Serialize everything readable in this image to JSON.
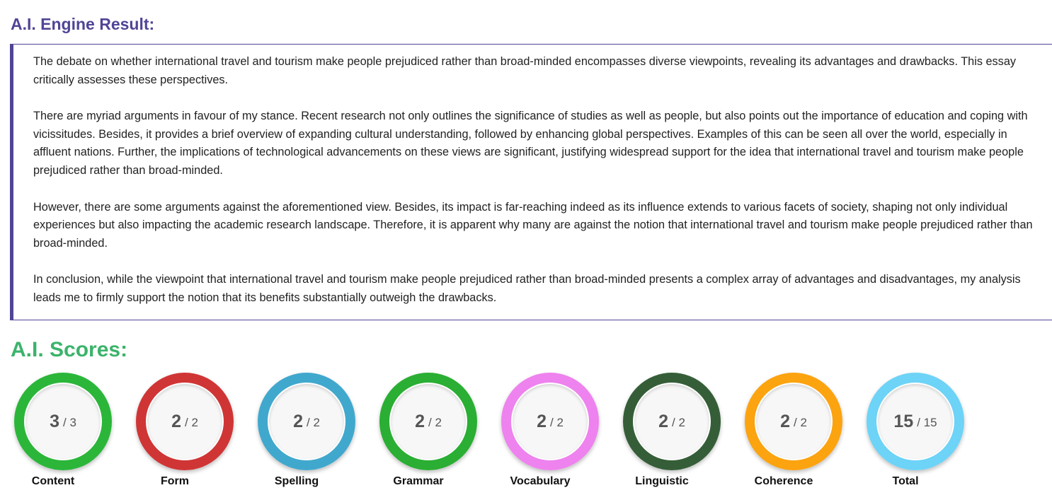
{
  "result": {
    "title": "A.I. Engine Result:",
    "paragraphs": [
      "The debate on whether international travel and tourism make people prejudiced rather than broad-minded encompasses diverse viewpoints, revealing its advantages and drawbacks. This essay critically assesses these perspectives.",
      "There are myriad arguments in favour of my stance. Recent research not only outlines the significance of studies as well as people, but also points out the importance of education and coping with vicissitudes. Besides, it provides a brief overview of expanding cultural understanding, followed by enhancing global perspectives. Examples of this can be seen all over the world, especially in affluent nations. Further, the implications of technological advancements on these views are significant, justifying widespread support for the idea that international travel and tourism make people prejudiced rather than broad-minded.",
      "However, there are some arguments against the aforementioned view. Besides, its impact is far-reaching indeed as its influence extends to various facets of society, shaping not only individual experiences but also impacting the academic research landscape. Therefore, it is apparent why many are against the notion that international travel and tourism make people prejudiced rather than broad-minded.",
      "In conclusion, while the viewpoint that international travel and tourism make people prejudiced rather than broad-minded presents a complex array of advantages and disadvantages, my analysis leads me to firmly support the notion that its benefits substantially outweigh the drawbacks."
    ]
  },
  "scores": {
    "title": "A.I. Scores:",
    "items": [
      {
        "label": "Content",
        "score": "3",
        "max": "/ 3",
        "color": "#2bb63a"
      },
      {
        "label": "Form",
        "score": "2",
        "max": "/ 2",
        "color": "#d03535"
      },
      {
        "label": "Spelling",
        "score": "2",
        "max": "/ 2",
        "color": "#41a8cd"
      },
      {
        "label": "Grammar",
        "score": "2",
        "max": "/ 2",
        "color": "#2aae33"
      },
      {
        "label": "Vocabulary",
        "score": "2",
        "max": "/ 2",
        "color": "#ee82ee"
      },
      {
        "label": "Linguistic",
        "score": "2",
        "max": "/ 2",
        "color": "#355e38"
      },
      {
        "label": "Coherence",
        "score": "2",
        "max": "/ 2",
        "color": "#fca310"
      },
      {
        "label": "Total",
        "score": "15",
        "max": "/ 15",
        "color": "#6dd3f7"
      }
    ]
  }
}
